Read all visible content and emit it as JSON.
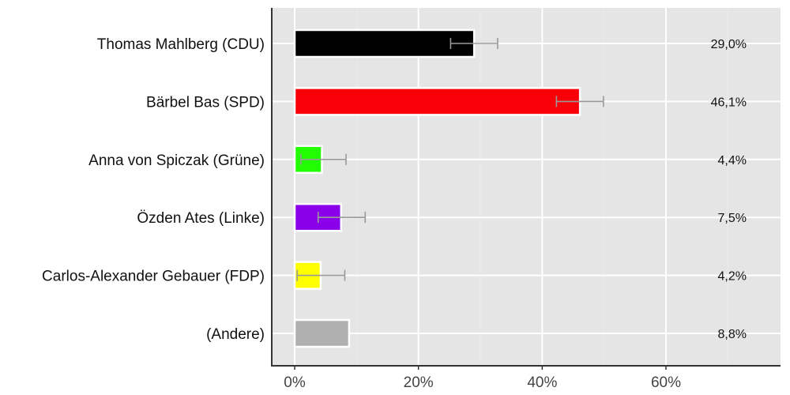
{
  "chart_data": {
    "type": "bar",
    "orientation": "horizontal",
    "title": "",
    "xlabel": "",
    "ylabel": "",
    "xlim": [
      -3.7,
      78.4
    ],
    "grid": true,
    "legend": null,
    "x_ticks": [
      "0%",
      "20%",
      "40%",
      "60%"
    ],
    "x_tick_values": [
      0,
      20,
      40,
      60
    ],
    "categories": [
      "Thomas Mahlberg (CDU)",
      "Bärbel Bas (SPD)",
      "Anna von Spiczak (Grüne)",
      "Özden Ates (Linke)",
      "Carlos-Alexander Gebauer (FDP)",
      "(Andere)"
    ],
    "values": [
      29.0,
      46.1,
      4.4,
      7.5,
      4.2,
      8.8
    ],
    "value_labels": [
      "29,0%",
      "46,1%",
      "4,4%",
      "7,5%",
      "4,2%",
      "8,8%"
    ],
    "colors": [
      "#000000",
      "#f90008",
      "#22ff00",
      "#8a00e8",
      "#ffff00",
      "#b0b0b0"
    ],
    "error_bars": [
      {
        "low": 25.2,
        "high": 32.8
      },
      {
        "low": 42.3,
        "high": 49.9
      },
      {
        "low": 1.0,
        "high": 8.3
      },
      {
        "low": 3.8,
        "high": 11.4
      },
      {
        "low": 0.4,
        "high": 8.1
      },
      null
    ]
  },
  "style": {
    "panel_bg": "#e5e5e5",
    "grid_color": "#ffffff",
    "axis_color": "#333333",
    "errorbar_color": "#999999"
  }
}
